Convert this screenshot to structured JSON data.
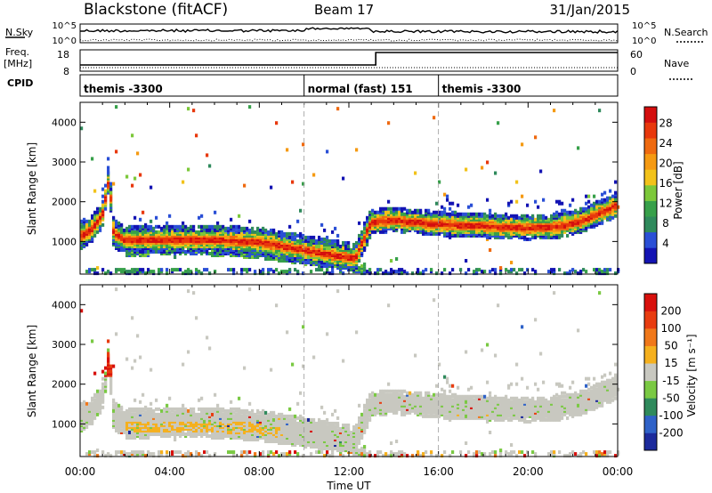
{
  "header": {
    "station": "Blackstone (fitACF)",
    "beam": "Beam 17",
    "date": "31/Jan/2015"
  },
  "left_labels": {
    "nsky": "N.Sky",
    "freq_line1": "Freq.",
    "freq_line2": "[MHz]",
    "cpid": "CPID"
  },
  "right_labels": {
    "nsearch": "N.Search",
    "nave": "Nave"
  },
  "noise_axis": {
    "left_top": "10^5",
    "left_bottom": "10^0",
    "right_top": "10^5",
    "right_bottom": "10^0"
  },
  "freq_axis": {
    "left_ticks": [
      "18",
      "8"
    ],
    "right_ticks": [
      "60",
      "0"
    ]
  },
  "cpid_segments": [
    {
      "label": "themis -3300",
      "start_hour": 0,
      "end_hour": 10
    },
    {
      "label": "normal (fast) 151",
      "start_hour": 10,
      "end_hour": 16
    },
    {
      "label": "themis -3300",
      "start_hour": 16,
      "end_hour": 24
    }
  ],
  "chart_data": [
    {
      "type": "heatmap",
      "name": "power",
      "ylabel": "Slant Range [km]",
      "xlabel": "Time UT",
      "xlim": [
        0,
        24
      ],
      "ylim": [
        180,
        4500
      ],
      "y_ticks": [
        "1000",
        "2000",
        "3000",
        "4000"
      ],
      "x_ticks": [
        "00:00",
        "04:00",
        "08:00",
        "12:00",
        "16:00",
        "20:00",
        "00:00"
      ],
      "colorbar": {
        "label": "Power [dB]",
        "ticks": [
          "4",
          "8",
          "12",
          "16",
          "20",
          "24",
          "28"
        ],
        "colors": [
          "#1313b3",
          "#2a4fd6",
          "#2f8a5c",
          "#37a04a",
          "#7cc83a",
          "#f2c21a",
          "#f59a12",
          "#ef6a10",
          "#e8380c",
          "#d40e0e"
        ]
      },
      "bands": [
        {
          "name": "main echo band",
          "points": [
            [
              0.0,
              1150
            ],
            [
              0.5,
              1300
            ],
            [
              1.0,
              1700
            ],
            [
              1.3,
              2600
            ],
            [
              1.5,
              1200
            ],
            [
              2.0,
              1050
            ],
            [
              4.0,
              1050
            ],
            [
              6.0,
              1050
            ],
            [
              8.0,
              1000
            ],
            [
              9.5,
              850
            ],
            [
              10.5,
              750
            ],
            [
              11.5,
              650
            ],
            [
              12.3,
              600
            ],
            [
              12.8,
              1250
            ],
            [
              13.0,
              1500
            ],
            [
              14.0,
              1550
            ],
            [
              16.0,
              1450
            ],
            [
              18.0,
              1400
            ],
            [
              20.0,
              1350
            ],
            [
              21.5,
              1400
            ],
            [
              22.5,
              1550
            ],
            [
              23.5,
              1800
            ],
            [
              24.0,
              1950
            ]
          ]
        },
        {
          "name": "lower band",
          "points": [
            [
              2.0,
              750
            ],
            [
              5.0,
              800
            ],
            [
              8.0,
              700
            ],
            [
              10.0,
              550
            ],
            [
              12.0,
              400
            ],
            [
              12.8,
              300
            ]
          ]
        }
      ]
    },
    {
      "type": "heatmap",
      "name": "velocity",
      "ylabel": "Slant Range [km]",
      "xlabel": "Time UT",
      "xlim": [
        0,
        24
      ],
      "ylim": [
        180,
        4500
      ],
      "y_ticks": [
        "1000",
        "2000",
        "3000",
        "4000"
      ],
      "x_ticks": [
        "00:00",
        "04:00",
        "08:00",
        "12:00",
        "16:00",
        "20:00",
        "00:00"
      ],
      "colorbar": {
        "label": "Velocity [m s⁻¹]",
        "ticks": [
          "200",
          "100",
          "50",
          "15",
          "-15",
          "-50",
          "-100",
          "-200"
        ],
        "colors": [
          "#1c2a9c",
          "#2f62c8",
          "#2f8a5c",
          "#7ac943",
          "#c8c8c0",
          "#f5b01e",
          "#f0781a",
          "#e83c10",
          "#d8100c"
        ]
      }
    }
  ],
  "time_axis_label": "Time UT"
}
